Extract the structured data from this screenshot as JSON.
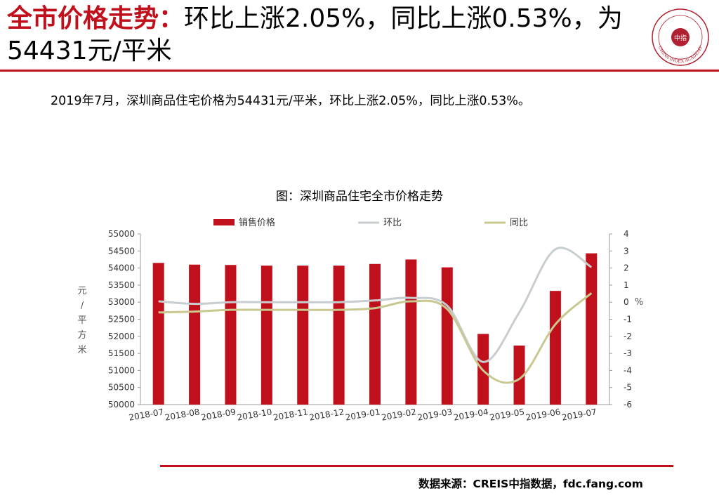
{
  "header": {
    "title_highlight": "全市价格走势：",
    "title_rest": "环比上涨2.05%，同比上涨0.53%，为54431元/平米"
  },
  "logo": {
    "icon": "china-index-academy-seal-icon",
    "text": "CHINA INDEX ACADEMY",
    "center": "中指"
  },
  "summary": "2019年7月，深圳商品住宅价格为54431元/平米，环比上涨2.05%，同比上涨0.53%。",
  "footer": {
    "source": "数据来源：CREIS中指数据，fdc.fang.com"
  },
  "colors": {
    "accent": "#c0101c",
    "bar": "#c0101c",
    "mom_line": "#c8cdd0",
    "yoy_line": "#c8c890"
  },
  "chart_data": {
    "type": "bar",
    "title": "图：深圳商品住宅全市价格走势",
    "categories": [
      "2018-07",
      "2018-08",
      "2018-09",
      "2018-10",
      "2018-11",
      "2018-12",
      "2019-01",
      "2019-02",
      "2019-03",
      "2019-04",
      "2019-05",
      "2019-06",
      "2019-07"
    ],
    "ylabel": "元/平方米",
    "y2label": "%",
    "ylim": [
      50000,
      55000
    ],
    "y2lim": [
      -6,
      4
    ],
    "yticks": [
      50000,
      50500,
      51000,
      51500,
      52000,
      52500,
      53000,
      53500,
      54000,
      54500,
      55000
    ],
    "y2ticks": [
      -6,
      -5,
      -4,
      -3,
      -2,
      -1,
      0,
      1,
      2,
      3,
      4
    ],
    "legend_position": "top",
    "grid": false,
    "series": [
      {
        "name": "销售价格",
        "type": "bar",
        "axis": "left",
        "values": [
          54150,
          54100,
          54090,
          54070,
          54070,
          54070,
          54120,
          54250,
          54020,
          52070,
          51730,
          53330,
          54431
        ]
      },
      {
        "name": "环比",
        "type": "line",
        "axis": "right",
        "values": [
          0.05,
          -0.1,
          0.0,
          0.0,
          0.0,
          0.0,
          0.1,
          0.25,
          -0.2,
          -3.5,
          -0.6,
          3.1,
          2.05
        ]
      },
      {
        "name": "同比",
        "type": "line",
        "axis": "right",
        "values": [
          -0.6,
          -0.55,
          -0.45,
          -0.45,
          -0.45,
          -0.45,
          -0.35,
          0.05,
          -0.4,
          -4.0,
          -4.5,
          -1.3,
          0.53
        ]
      }
    ]
  }
}
